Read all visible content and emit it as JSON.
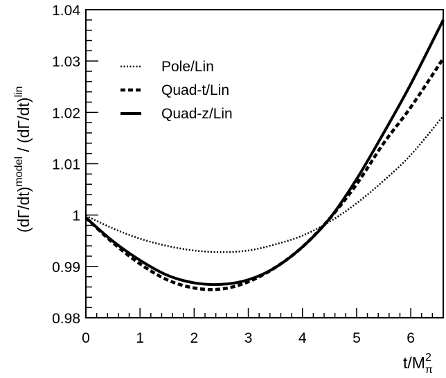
{
  "chart_data": {
    "type": "line",
    "title": "",
    "xlabel": "t/M",
    "xlabel_sup": "2",
    "xlabel_sub": "π",
    "ylabel": "(dΓ/dt)",
    "ylabel_sup": "model",
    "ylabel_mid": " / (dΓ/dt)",
    "ylabel_sup2": "lin",
    "xlim": [
      0,
      6.6
    ],
    "ylim": [
      0.98,
      1.04
    ],
    "xticks": [
      0,
      1,
      2,
      3,
      4,
      5,
      6
    ],
    "xtick_labels": [
      "0",
      "1",
      "2",
      "3",
      "4",
      "5",
      "6"
    ],
    "yticks": [
      0.98,
      0.99,
      1.0,
      1.01,
      1.02,
      1.03,
      1.04
    ],
    "ytick_labels": [
      "0.98",
      "0.99",
      "1",
      "1.01",
      "1.02",
      "1.03",
      "1.04"
    ],
    "grid": false,
    "legend_position": "top-left",
    "x": [
      0,
      0.5,
      1.0,
      1.5,
      2.0,
      2.5,
      3.0,
      3.5,
      4.0,
      4.5,
      5.0,
      5.5,
      6.0,
      6.6
    ],
    "series": [
      {
        "name": "Pole/Lin",
        "style": "dotted",
        "values": [
          0.9999,
          0.9974,
          0.9954,
          0.994,
          0.9931,
          0.9928,
          0.9931,
          0.9943,
          0.996,
          0.9987,
          1.0023,
          1.0067,
          1.0117,
          1.0193
        ]
      },
      {
        "name": "Quad-t/Lin",
        "style": "dashed",
        "values": [
          0.9995,
          0.9946,
          0.9905,
          0.9874,
          0.9858,
          0.9856,
          0.987,
          0.9898,
          0.9938,
          0.9993,
          1.006,
          1.014,
          1.021,
          1.0305
        ]
      },
      {
        "name": "Quad-z/Lin",
        "style": "solid",
        "values": [
          0.9995,
          0.9949,
          0.9912,
          0.9883,
          0.9868,
          0.9865,
          0.9874,
          0.9898,
          0.9938,
          0.9993,
          1.007,
          1.016,
          1.0255,
          1.038
        ]
      }
    ]
  }
}
